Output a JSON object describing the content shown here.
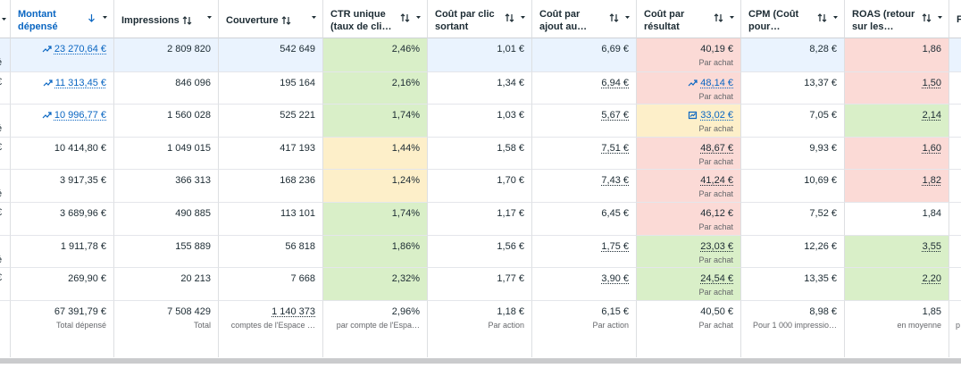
{
  "table": {
    "left_edge": [
      "é",
      "€",
      "é",
      "€",
      "é",
      "€",
      "é",
      "€"
    ],
    "right_edge_header": "F",
    "footer_right_edge": "p",
    "columns": [
      {
        "lines": [
          "Montant",
          "dépensé"
        ],
        "sorted": true
      },
      {
        "lines": [
          "Impressions"
        ],
        "inline_sort": true
      },
      {
        "lines": [
          "Couverture"
        ],
        "inline_sort": true
      },
      {
        "lines": [
          "CTR unique",
          "(taux de cli…"
        ]
      },
      {
        "lines": [
          "Coût par clic",
          "sortant"
        ]
      },
      {
        "lines": [
          "Coût par",
          "ajout au…"
        ]
      },
      {
        "lines": [
          "Coût par",
          "résultat"
        ]
      },
      {
        "lines": [
          "CPM (Coût",
          "pour…"
        ]
      },
      {
        "lines": [
          "ROAS (retour",
          "sur les…"
        ]
      }
    ],
    "rows": [
      [
        {
          "text": "23 270,64 €",
          "link": true,
          "icon": "trend"
        },
        {
          "text": "2 809 820"
        },
        {
          "text": "542 649"
        },
        {
          "text": "2,46%",
          "bg": "green"
        },
        {
          "text": "1,01 €"
        },
        {
          "text": "6,69 €"
        },
        {
          "text": "40,19 €",
          "sub": "Par achat",
          "bg": "pink"
        },
        {
          "text": "8,28 €"
        },
        {
          "text": "1,86",
          "bg": "pink"
        }
      ],
      [
        {
          "text": "11 313,45 €",
          "link": true,
          "icon": "trend"
        },
        {
          "text": "846 096"
        },
        {
          "text": "195 164"
        },
        {
          "text": "2,16%",
          "bg": "green"
        },
        {
          "text": "1,34 €"
        },
        {
          "text": "6,94 €",
          "dotted": true
        },
        {
          "text": "48,14 €",
          "sub": "Par achat",
          "bg": "pink",
          "link": true,
          "icon": "trend"
        },
        {
          "text": "13,37 €"
        },
        {
          "text": "1,50",
          "bg": "pink",
          "dotted": true
        }
      ],
      [
        {
          "text": "10 996,77 €",
          "link": true,
          "icon": "trend"
        },
        {
          "text": "1 560 028"
        },
        {
          "text": "525 221"
        },
        {
          "text": "1,74%",
          "bg": "green"
        },
        {
          "text": "1,03 €"
        },
        {
          "text": "5,67 €",
          "dotted": true
        },
        {
          "text": "33,02 €",
          "sub": "Par achat",
          "bg": "yellow",
          "link": true,
          "icon": "box"
        },
        {
          "text": "7,05 €"
        },
        {
          "text": "2,14",
          "bg": "green",
          "dotted": true
        }
      ],
      [
        {
          "text": "10 414,80 €"
        },
        {
          "text": "1 049 015"
        },
        {
          "text": "417 193"
        },
        {
          "text": "1,44%",
          "bg": "yellow"
        },
        {
          "text": "1,58 €"
        },
        {
          "text": "7,51 €",
          "dotted": true
        },
        {
          "text": "48,67 €",
          "sub": "Par achat",
          "bg": "pink",
          "dotted": true
        },
        {
          "text": "9,93 €"
        },
        {
          "text": "1,60",
          "bg": "pink",
          "dotted": true
        }
      ],
      [
        {
          "text": "3 917,35 €"
        },
        {
          "text": "366 313"
        },
        {
          "text": "168 236"
        },
        {
          "text": "1,24%",
          "bg": "yellow"
        },
        {
          "text": "1,70 €"
        },
        {
          "text": "7,43 €",
          "dotted": true
        },
        {
          "text": "41,24 €",
          "sub": "Par achat",
          "bg": "pink",
          "dotted": true
        },
        {
          "text": "10,69 €"
        },
        {
          "text": "1,82",
          "bg": "pink",
          "dotted": true
        }
      ],
      [
        {
          "text": "3 689,96 €"
        },
        {
          "text": "490 885"
        },
        {
          "text": "113 101"
        },
        {
          "text": "1,74%",
          "bg": "green"
        },
        {
          "text": "1,17 €"
        },
        {
          "text": "6,45 €"
        },
        {
          "text": "46,12 €",
          "sub": "Par achat",
          "bg": "pink"
        },
        {
          "text": "7,52 €"
        },
        {
          "text": "1,84"
        }
      ],
      [
        {
          "text": "1 911,78 €"
        },
        {
          "text": "155 889"
        },
        {
          "text": "56 818"
        },
        {
          "text": "1,86%",
          "bg": "green"
        },
        {
          "text": "1,56 €"
        },
        {
          "text": "1,75 €",
          "dotted": true
        },
        {
          "text": "23,03 €",
          "sub": "Par achat",
          "bg": "green",
          "dotted": true
        },
        {
          "text": "12,26 €"
        },
        {
          "text": "3,55",
          "bg": "green",
          "dotted": true
        }
      ],
      [
        {
          "text": "269,90 €"
        },
        {
          "text": "20 213"
        },
        {
          "text": "7 668"
        },
        {
          "text": "2,32%",
          "bg": "green"
        },
        {
          "text": "1,77 €"
        },
        {
          "text": "3,90 €",
          "dotted": true
        },
        {
          "text": "24,54 €",
          "sub": "Par achat",
          "bg": "green",
          "dotted": true
        },
        {
          "text": "13,35 €"
        },
        {
          "text": "2,20",
          "bg": "green",
          "dotted": true
        }
      ]
    ],
    "footer": [
      {
        "text": "67 391,79 €",
        "sub": "Total dépensé"
      },
      {
        "text": "7 508 429",
        "sub": "Total"
      },
      {
        "text": "1 140 373",
        "sub": "comptes de l'Espace …",
        "dotted": true
      },
      {
        "text": "2,96%",
        "sub": "par compte de l'Espa…"
      },
      {
        "text": "1,18 €",
        "sub": "Par action"
      },
      {
        "text": "6,15 €",
        "sub": "Par action"
      },
      {
        "text": "40,50 €",
        "sub": "Par achat"
      },
      {
        "text": "8,98 €",
        "sub": "Pour 1 000 impressio…"
      },
      {
        "text": "1,85",
        "sub": "en moyenne"
      }
    ]
  }
}
